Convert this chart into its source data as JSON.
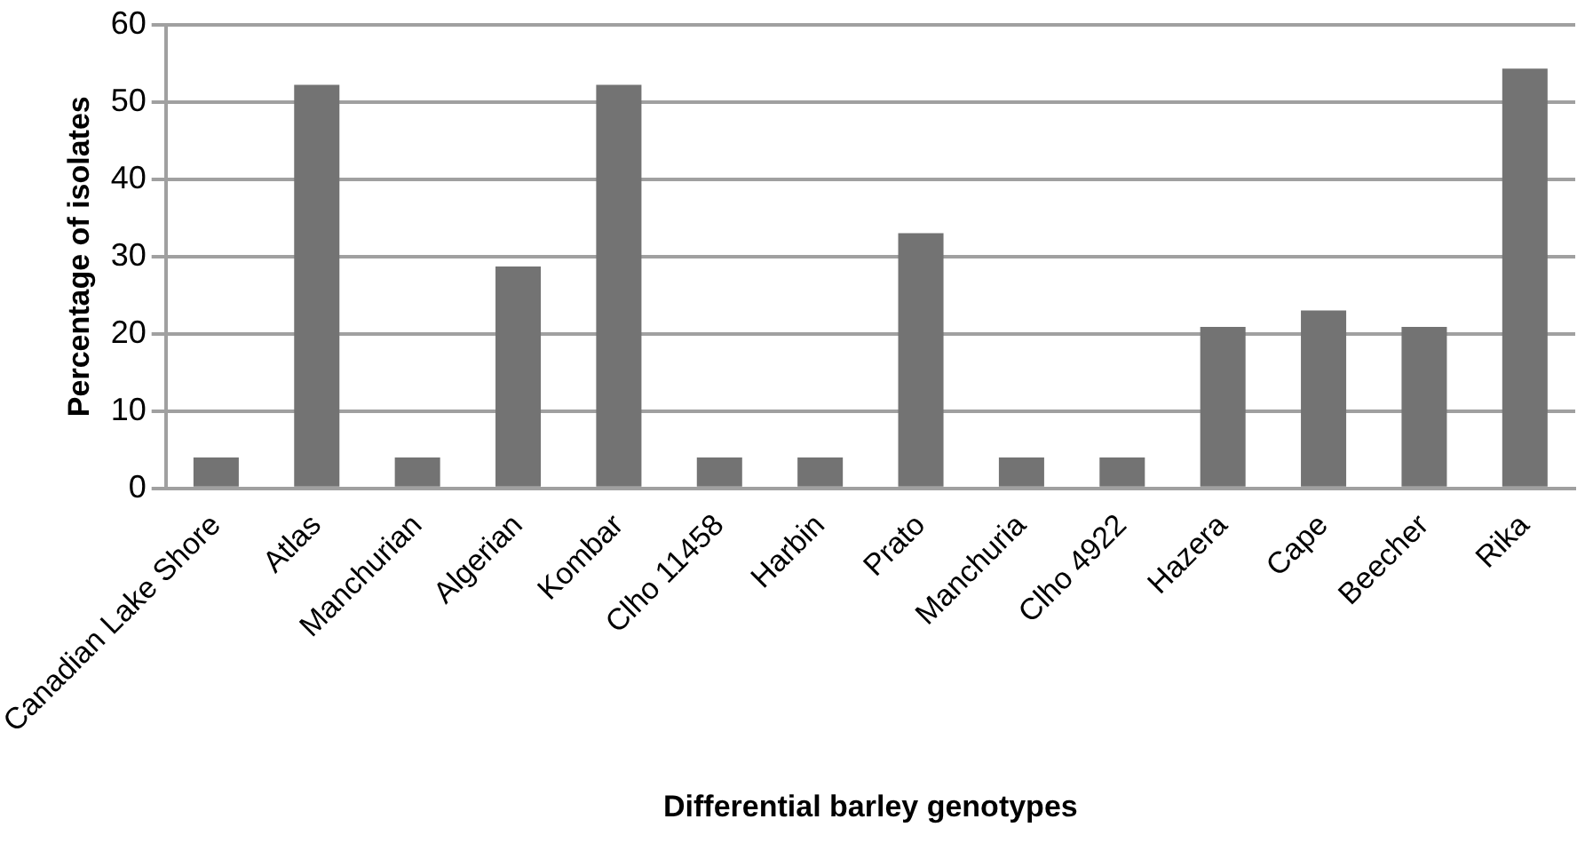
{
  "chart_data": {
    "type": "bar",
    "xlabel": "Differential barley genotypes",
    "ylabel": "Percentage of isolates",
    "categories": [
      "Canadian Lake Shore",
      "Atlas",
      "Manchurian",
      "Algerian",
      "Kombar",
      "Clho 11458",
      "Harbin",
      "Prato",
      "Manchuria",
      "Clho 4922",
      "Hazera",
      "Cape",
      "Beecher",
      "Rika"
    ],
    "values": [
      4,
      52.2,
      4,
      28.7,
      52.2,
      4,
      4,
      33,
      4,
      4,
      20.9,
      23,
      20.9,
      54.3
    ],
    "color": "#737373",
    "ylim": [
      0,
      60
    ],
    "yticks": [
      0,
      10,
      20,
      30,
      40,
      50,
      60
    ],
    "grid": "y",
    "legend": false
  }
}
